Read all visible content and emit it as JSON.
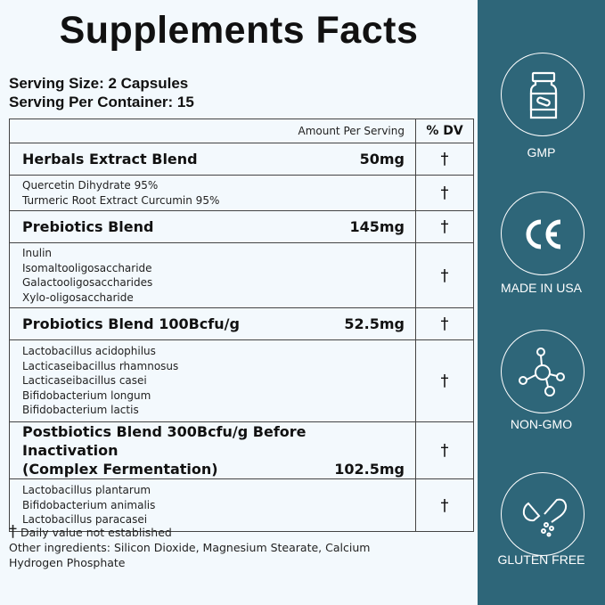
{
  "title": "Supplements Facts",
  "serving_size": "Serving Size: 2 Capsules",
  "serving_per_container": "Serving Per Container: 15",
  "table": {
    "header_amount": "Amount Per Serving",
    "header_dv": "% DV",
    "blends": [
      {
        "name": "Herbals Extract Blend",
        "amount": "50mg",
        "dv": "†",
        "ingredients": [
          "Quercetin Dihydrate 95%",
          "Turmeric Root Extract Curcumin 95%"
        ],
        "ing_dv": "†"
      },
      {
        "name": "Prebiotics Blend",
        "amount": "145mg",
        "dv": "†",
        "ingredients": [
          "Inulin",
          "Isomaltooligosaccharide",
          "Galactooligosaccharides",
          "Xylo-oligosaccharide"
        ],
        "ing_dv": "†"
      },
      {
        "name": "Probiotics Blend 100Bcfu/g",
        "amount": "52.5mg",
        "dv": "†",
        "ingredients": [
          "Lactobacillus acidophilus",
          "Lacticaseibacillus rhamnosus",
          "Lacticaseibacillus casei",
          "Bifidobacterium longum",
          "Bifidobacterium lactis"
        ],
        "ing_dv": "†"
      },
      {
        "name": "Postbiotics Blend 300Bcfu/g Before Inactivation",
        "name2": "(Complex Fermentation)",
        "amount": "102.5mg",
        "dv": "†",
        "ingredients": [
          "Lactobacillus plantarum",
          "Bifidobacterium animalis",
          "Lactobacillus paracasei"
        ],
        "ing_dv": "†"
      }
    ]
  },
  "footnote": {
    "symbol": "†",
    "text": "Daily value not established",
    "other": "Other ingredients: Silicon Dioxide, Magnesium Stearate, Calcium Hydrogen Phosphate"
  },
  "badges": [
    {
      "icon": "supplement-bottle-icon",
      "label": "GMP"
    },
    {
      "icon": "ce-mark-icon",
      "label": "MADE IN USA"
    },
    {
      "icon": "molecule-icon",
      "label": "NON-GMO"
    },
    {
      "icon": "capsule-icon",
      "label": "GLUTEN FREE"
    }
  ],
  "colors": {
    "panel": "#2e6679",
    "background": "#f3f9fd"
  }
}
